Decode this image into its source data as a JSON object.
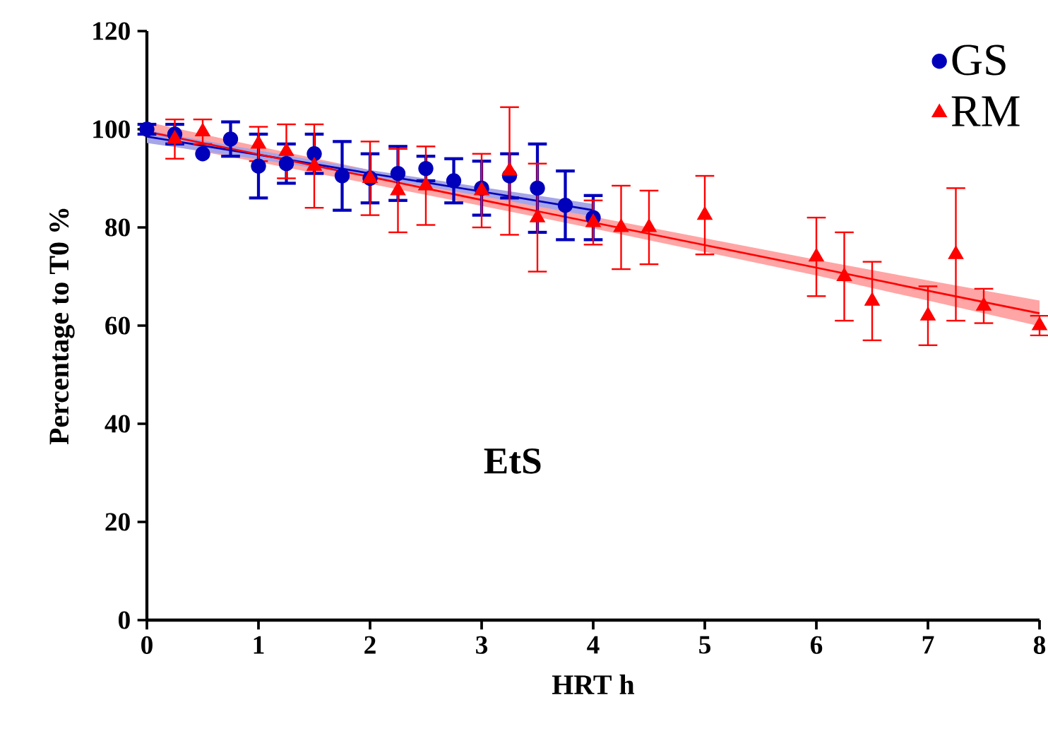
{
  "chart_data": {
    "type": "scatter",
    "xlabel": "HRT h",
    "ylabel": "Percentage to T0 %",
    "annotations": [
      "EtS"
    ],
    "xlim": [
      0,
      8
    ],
    "xticks": [
      0,
      1,
      2,
      3,
      4,
      5,
      6,
      7,
      8
    ],
    "ylim": [
      0,
      120
    ],
    "yticks": [
      0,
      20,
      40,
      60,
      80,
      100,
      120
    ],
    "grid": false,
    "legend": "top right",
    "series": [
      {
        "name": "GS",
        "type": "scatter",
        "color": "#0000bb",
        "marker": "circle",
        "x": [
          0,
          0.25,
          0.5,
          0.75,
          1,
          1.25,
          1.5,
          1.75,
          2,
          2.25,
          2.5,
          2.75,
          3,
          3.25,
          3.5,
          3.75,
          4
        ],
        "values": [
          100,
          99,
          95,
          98,
          92.5,
          93,
          95,
          90.5,
          90,
          91,
          92,
          89.5,
          88,
          90.5,
          88,
          84.5,
          82
        ],
        "errors": [
          1,
          2,
          null,
          3.5,
          6.5,
          4,
          4,
          7,
          5,
          5.5,
          2.5,
          4.5,
          5.5,
          4.5,
          9,
          7,
          4.5
        ]
      },
      {
        "name": "RM",
        "type": "scatter",
        "color": "#ff0000",
        "marker": "triangle",
        "x": [
          0.25,
          0.5,
          1,
          1.25,
          1.5,
          2,
          2.25,
          2.5,
          3,
          3.25,
          3.5,
          4,
          4.25,
          4.5,
          5,
          6,
          6.25,
          6.5,
          7,
          7.25,
          7.5,
          8
        ],
        "values": [
          98,
          99.5,
          97,
          95.5,
          92.5,
          90,
          87.5,
          88.5,
          87.5,
          91.5,
          82,
          81,
          80,
          80,
          82.5,
          74,
          70,
          65,
          62,
          74.5,
          64,
          60
        ],
        "errors": [
          4,
          2.5,
          3.5,
          5.5,
          8.5,
          7.5,
          8.5,
          8,
          7.5,
          13,
          11,
          4.5,
          8.5,
          7.5,
          8,
          8,
          9,
          8,
          6,
          13.5,
          3.5,
          2
        ]
      },
      {
        "type": "line",
        "color": "#0000bb",
        "marker": "none",
        "line_style": "solid",
        "x": [
          0,
          1,
          2,
          3,
          4
        ],
        "values": [
          98.5,
          94.8,
          91.0,
          87.3,
          83.5
        ],
        "lower": [
          97.2,
          93.9,
          90.3,
          86.4,
          82.2
        ],
        "upper": [
          99.8,
          95.7,
          91.7,
          88.2,
          84.8
        ]
      },
      {
        "type": "line",
        "color": "#ff0000",
        "marker": "none",
        "line_style": "solid",
        "x": [
          0,
          1,
          2,
          3,
          4,
          5,
          6,
          7,
          8
        ],
        "values": [
          99.5,
          94.9,
          90.3,
          85.6,
          81.0,
          76.4,
          71.8,
          67.1,
          62.5
        ],
        "lower": [
          97.5,
          93.3,
          88.9,
          84.4,
          79.8,
          75.0,
          70.2,
          65.1,
          59.9
        ],
        "upper": [
          101.5,
          96.5,
          91.7,
          86.8,
          82.2,
          77.8,
          73.4,
          69.2,
          65.1
        ]
      }
    ]
  }
}
